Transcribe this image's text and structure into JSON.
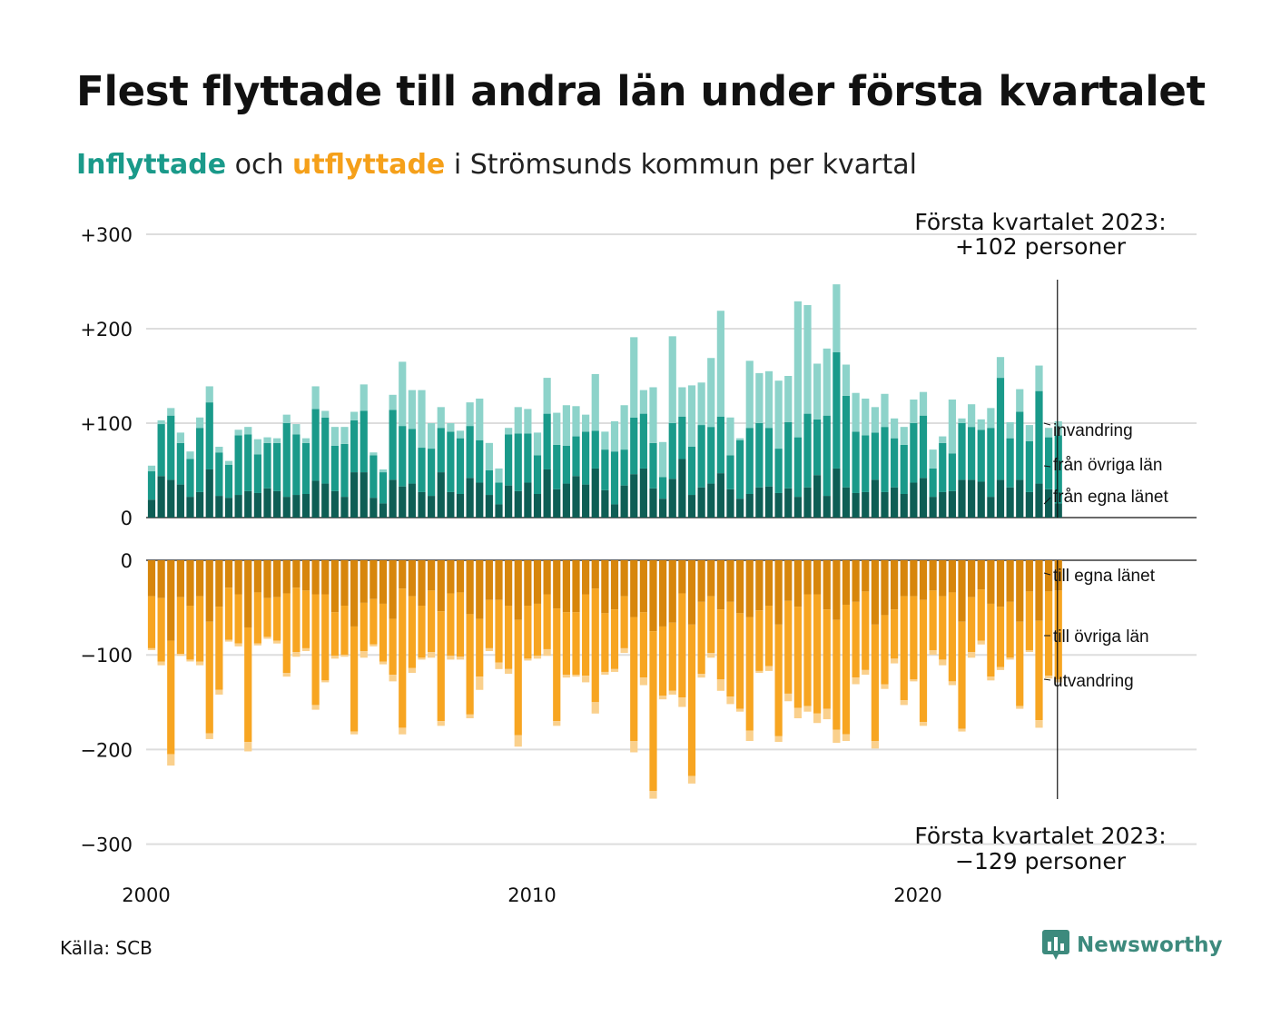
{
  "title": "Flest flyttade till andra län under första kvartalet",
  "subtitle": {
    "inflow_word": "Inflyttade",
    "connector": "och",
    "outflow_word": "utflyttade",
    "rest": "i Strömsunds kommun per kvartal"
  },
  "source": "Källa: SCB",
  "brand": "Newsworthy",
  "colors": {
    "in_local": "#0e5e55",
    "in_other": "#1a9a8a",
    "in_immigration": "#8dd3ca",
    "out_local": "#d7860c",
    "out_other": "#f7a521",
    "out_emigration": "#fad08c",
    "grid": "#dddddd"
  },
  "chart_data": [
    {
      "type": "bar",
      "stacked": true,
      "panel": "inflyttade",
      "x_start": 2000,
      "x_step": 0.25,
      "ylim": [
        0,
        300
      ],
      "yticks": [
        0,
        100,
        200,
        300
      ],
      "ytick_labels": [
        "0",
        "+100",
        "+200",
        "+300"
      ],
      "xticks": [
        2000,
        2010,
        2020
      ],
      "xtick_labels": [
        "2000",
        "2010",
        "2020"
      ],
      "annotation": [
        "Första kvartalet 2023:",
        "+102 personer"
      ],
      "series": [
        {
          "name": "från egna länet",
          "values": [
            19,
            44,
            40,
            35,
            22,
            27,
            51,
            23,
            21,
            24,
            28,
            26,
            31,
            28,
            22,
            24,
            25,
            39,
            36,
            28,
            22,
            48,
            48,
            21,
            15,
            40,
            33,
            36,
            27,
            23,
            48,
            27,
            25,
            42,
            37,
            24,
            14,
            34,
            28,
            37,
            25,
            51,
            30,
            36,
            44,
            35,
            52,
            29,
            14,
            34,
            46,
            52,
            31,
            20,
            41,
            62,
            24,
            32,
            36,
            47,
            30,
            20,
            25,
            32,
            33,
            26,
            31,
            22,
            32,
            45,
            23,
            52,
            32,
            26,
            27,
            40,
            27,
            32,
            25,
            37,
            42,
            22,
            27,
            28,
            40,
            40,
            38,
            22,
            40,
            32,
            40,
            27,
            36,
            30,
            15
          ]
        },
        {
          "name": "från övriga län",
          "values": [
            30,
            55,
            68,
            44,
            40,
            68,
            71,
            46,
            35,
            63,
            60,
            41,
            48,
            51,
            78,
            64,
            54,
            76,
            70,
            48,
            56,
            55,
            65,
            45,
            33,
            74,
            64,
            58,
            47,
            50,
            47,
            64,
            59,
            55,
            45,
            26,
            23,
            54,
            61,
            52,
            41,
            59,
            47,
            40,
            42,
            56,
            40,
            43,
            56,
            38,
            60,
            58,
            48,
            23,
            59,
            45,
            51,
            66,
            60,
            60,
            36,
            62,
            70,
            68,
            62,
            47,
            70,
            63,
            78,
            59,
            85,
            123,
            97,
            65,
            60,
            50,
            69,
            52,
            52,
            63,
            66,
            30,
            52,
            40,
            60,
            56,
            55,
            73,
            108,
            52,
            72,
            54,
            98,
            55,
            72
          ]
        },
        {
          "name": "invandring",
          "values": [
            6,
            4,
            8,
            11,
            8,
            11,
            17,
            6,
            4,
            6,
            8,
            16,
            6,
            5,
            9,
            11,
            5,
            24,
            7,
            20,
            18,
            9,
            28,
            3,
            3,
            16,
            68,
            41,
            61,
            27,
            22,
            9,
            8,
            25,
            44,
            29,
            15,
            7,
            28,
            26,
            24,
            38,
            34,
            43,
            32,
            18,
            60,
            19,
            32,
            47,
            85,
            25,
            59,
            37,
            92,
            31,
            65,
            45,
            73,
            112,
            40,
            2,
            71,
            53,
            60,
            72,
            49,
            144,
            115,
            59,
            71,
            72,
            33,
            41,
            39,
            27,
            35,
            21,
            19,
            25,
            25,
            20,
            7,
            57,
            5,
            24,
            11,
            21,
            22,
            17,
            24,
            17,
            27,
            10,
            15
          ]
        }
      ]
    },
    {
      "type": "bar",
      "stacked": true,
      "panel": "utflyttade",
      "x_start": 2000,
      "x_step": 0.25,
      "ylim": [
        -300,
        0
      ],
      "yticks": [
        0,
        -100,
        -200,
        -300
      ],
      "ytick_labels": [
        "0",
        "−100",
        "−200",
        "−300"
      ],
      "annotation": [
        "Första kvartalet 2023:",
        "−129 personer"
      ],
      "series": [
        {
          "name": "till egna länet",
          "values": [
            -38,
            -40,
            -85,
            -39,
            -48,
            -38,
            -65,
            -49,
            -29,
            -36,
            -71,
            -34,
            -40,
            -39,
            -35,
            -29,
            -32,
            -36,
            -36,
            -55,
            -48,
            -70,
            -45,
            -41,
            -46,
            -62,
            -30,
            -38,
            -48,
            -32,
            -54,
            -35,
            -34,
            -57,
            -62,
            -42,
            -42,
            -48,
            -63,
            -48,
            -46,
            -36,
            -51,
            -55,
            -55,
            -36,
            -30,
            -56,
            -52,
            -38,
            -60,
            -55,
            -75,
            -70,
            -66,
            -35,
            -68,
            -44,
            -38,
            -52,
            -44,
            -56,
            -60,
            -53,
            -48,
            -68,
            -43,
            -49,
            -36,
            -36,
            -52,
            -63,
            -47,
            -44,
            -33,
            -68,
            -58,
            -52,
            -38,
            -38,
            -42,
            -32,
            -38,
            -34,
            -65,
            -39,
            -31,
            -46,
            -49,
            -44,
            -65,
            -33,
            -64,
            -33,
            -32
          ]
        },
        {
          "name": "till övriga län",
          "values": [
            -55,
            -67,
            -120,
            -60,
            -57,
            -69,
            -118,
            -88,
            -55,
            -52,
            -121,
            -54,
            -41,
            -46,
            -84,
            -68,
            -61,
            -117,
            -91,
            -46,
            -52,
            -111,
            -51,
            -48,
            -61,
            -59,
            -147,
            -76,
            -55,
            -65,
            -116,
            -66,
            -68,
            -106,
            -61,
            -51,
            -66,
            -67,
            -122,
            -56,
            -55,
            -58,
            -119,
            -66,
            -66,
            -86,
            -120,
            -62,
            -63,
            -55,
            -131,
            -69,
            -169,
            -73,
            -72,
            -110,
            -160,
            -76,
            -60,
            -74,
            -100,
            -101,
            -120,
            -64,
            -64,
            -118,
            -98,
            -107,
            -118,
            -126,
            -105,
            -116,
            -137,
            -80,
            -83,
            -123,
            -73,
            -52,
            -110,
            -88,
            -129,
            -63,
            -67,
            -94,
            -113,
            -58,
            -54,
            -77,
            -64,
            -59,
            -89,
            -62,
            -105,
            -89,
            -94
          ]
        },
        {
          "name": "utvandring",
          "values": [
            -2,
            -4,
            -12,
            -2,
            -2,
            -4,
            -6,
            -5,
            -2,
            -3,
            -10,
            -2,
            -2,
            -3,
            -4,
            -5,
            -3,
            -5,
            -2,
            -3,
            -2,
            -3,
            -7,
            -2,
            -3,
            -7,
            -7,
            -5,
            -2,
            -6,
            -5,
            -4,
            -3,
            -4,
            -14,
            -3,
            -7,
            -5,
            -12,
            -2,
            -3,
            -7,
            -5,
            -3,
            -2,
            -7,
            -12,
            -3,
            -3,
            -5,
            -12,
            -8,
            -8,
            -4,
            -4,
            -10,
            -8,
            -4,
            -5,
            -12,
            -8,
            -3,
            -11,
            -2,
            -5,
            -6,
            -8,
            -11,
            -6,
            -10,
            -11,
            -14,
            -7,
            -7,
            -5,
            -8,
            -5,
            -5,
            -5,
            -2,
            -4,
            -5,
            -6,
            -4,
            -3,
            -6,
            -4,
            -4,
            -3,
            -2,
            -3,
            -2,
            -8,
            -3,
            -3
          ]
        }
      ]
    }
  ],
  "series_labels": {
    "in": [
      "invandring",
      "från övriga län",
      "från egna länet"
    ],
    "out": [
      "till egna länet",
      "till övriga län",
      "utvandring"
    ]
  }
}
